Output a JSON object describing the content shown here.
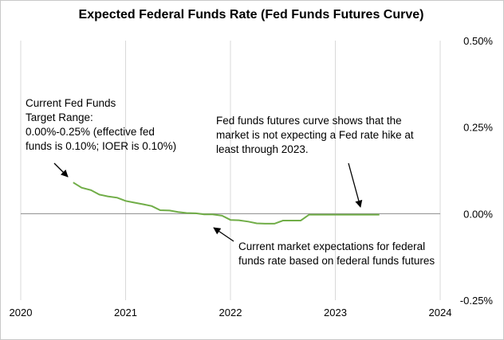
{
  "chart_data": {
    "type": "line",
    "title": "Expected Federal Funds Rate (Fed Funds Futures Curve)",
    "xlim": [
      2020,
      2024
    ],
    "ylim": [
      -0.25,
      0.5
    ],
    "x_ticks": [
      "2020",
      "2021",
      "2022",
      "2023",
      "2024"
    ],
    "y_ticks": [
      "0.50%",
      "0.25%",
      "0.00%",
      "-0.25%"
    ],
    "y_tick_values": [
      0.5,
      0.25,
      0.0,
      -0.25
    ],
    "grid": "vertical",
    "series_color": "#70ad47",
    "series": [
      {
        "x": [
          2020.5,
          2020.58,
          2020.67,
          2020.75,
          2020.83,
          2020.92,
          2021.0,
          2021.08,
          2021.17,
          2021.25,
          2021.33,
          2021.42,
          2021.5,
          2021.58,
          2021.67,
          2021.75,
          2021.83,
          2021.92,
          2022.0,
          2022.08,
          2022.17,
          2022.25,
          2022.33,
          2022.42,
          2022.5,
          2022.58,
          2022.67,
          2022.75,
          2022.83,
          2022.92,
          2023.0,
          2023.08,
          2023.17,
          2023.25,
          2023.33,
          2023.42
        ],
        "values": [
          0.09,
          0.075,
          0.068,
          0.055,
          0.05,
          0.046,
          0.037,
          0.032,
          0.027,
          0.022,
          0.01,
          0.009,
          0.005,
          0.002,
          0.001,
          -0.002,
          -0.002,
          -0.006,
          -0.018,
          -0.019,
          -0.023,
          -0.028,
          -0.029,
          -0.029,
          -0.02,
          -0.02,
          -0.02,
          -0.003,
          -0.003,
          -0.003,
          -0.003,
          -0.003,
          -0.003,
          -0.003,
          -0.003,
          -0.003
        ]
      }
    ],
    "annotations": {
      "fed_target": [
        "Current Fed Funds",
        "Target Range:",
        "0.00%-0.25% (effective fed",
        "funds is 0.10%; IOER is 0.10%)"
      ],
      "futures_curve": [
        "Fed funds futures curve shows that the",
        "market is not expecting a Fed rate hike at",
        "least through 2023."
      ],
      "market_expectations": [
        "Current market expectations for federal",
        "funds rate based on federal funds futures"
      ]
    }
  }
}
